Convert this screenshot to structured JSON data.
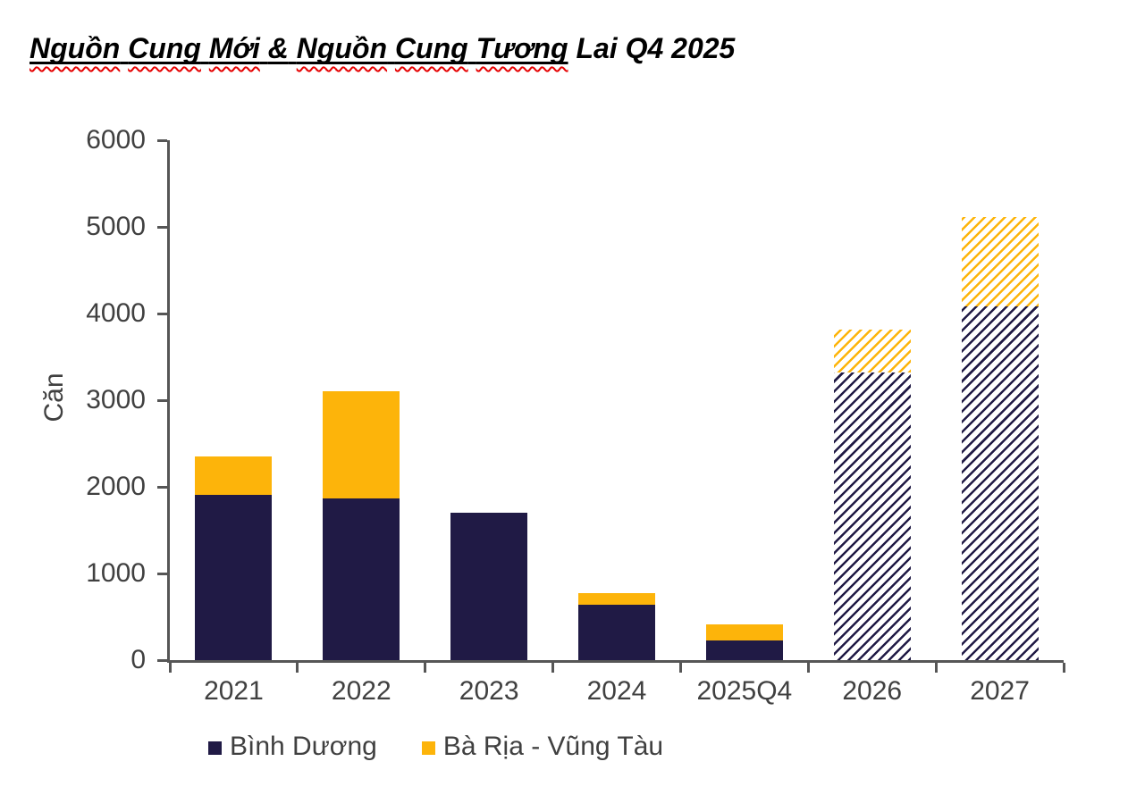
{
  "title": {
    "underlined_words": [
      "Nguồn",
      "Cung",
      "Mới",
      "&",
      "Nguồn",
      "Cung",
      "Tương"
    ],
    "tail": "Lai Q4 2025",
    "spellcheck_color": "#e60000",
    "text_color": "#000000"
  },
  "chart_data": {
    "type": "bar",
    "stacked": true,
    "categories": [
      "2021",
      "2022",
      "2023",
      "2024",
      "2025Q4",
      "2026",
      "2027"
    ],
    "series": [
      {
        "name": "Bình Dương",
        "key": "binh-duong",
        "color": "#201A45",
        "values": [
          1910,
          1870,
          1700,
          640,
          230,
          3320,
          4080
        ]
      },
      {
        "name": "Bà Rịa - Vũng Tàu",
        "key": "ba-ria-vung-tau",
        "color": "#FDB40A",
        "values": [
          440,
          1230,
          0,
          130,
          180,
          490,
          1030
        ]
      }
    ],
    "hatched_categories": [
      "2026",
      "2027"
    ],
    "hatch_meaning": "future supply",
    "ylabel": "Căn",
    "xlabel": "",
    "ylim": [
      0,
      6000
    ],
    "y_ticks": [
      0,
      1000,
      2000,
      3000,
      4000,
      5000,
      6000
    ],
    "grid": false,
    "legend_position": "bottom",
    "axis_color": "#565656",
    "tick_label_color": "#404040"
  }
}
